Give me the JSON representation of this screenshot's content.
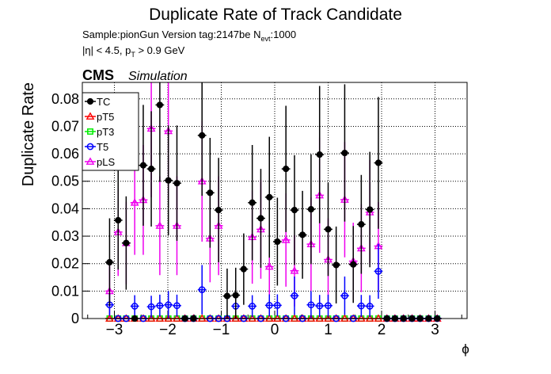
{
  "chart_data": {
    "type": "scatter",
    "title": "Duplicate Rate of Track Candidate",
    "info_line1_prefix": "Sample:pionGun   Version tag:2147be  N",
    "info_line1_sub": "evt",
    "info_line1_suffix": ":1000",
    "info_line2_prefix": "|η| < 4.5, p",
    "info_line2_sub": "T",
    "info_line2_suffix": " > 0.9 GeV",
    "cms_label": "CMS",
    "simulation_label": "Simulation",
    "xlabel": "ϕ",
    "ylabel": "Duplicate Rate",
    "xlim": [
      -3.6,
      3.6
    ],
    "ylim": [
      0,
      0.086
    ],
    "xticks": [
      -3,
      -2,
      -1,
      0,
      1,
      2,
      3
    ],
    "xtick_labels": [
      "−3",
      "−2",
      "−1",
      "0",
      "1",
      "2",
      "3"
    ],
    "yticks": [
      0,
      0.01,
      0.02,
      0.03,
      0.04,
      0.05,
      0.06,
      0.07,
      0.08
    ],
    "ytick_labels": [
      "0",
      "0.01",
      "0.02",
      "0.03",
      "0.04",
      "0.05",
      "0.06",
      "0.07",
      "0.08"
    ],
    "grid": true,
    "legend_position": "top-left",
    "x": [
      -3.09,
      -2.93,
      -2.78,
      -2.62,
      -2.46,
      -2.31,
      -2.15,
      -1.99,
      -1.83,
      -1.68,
      -1.52,
      -1.36,
      -1.21,
      -1.05,
      -0.89,
      -0.73,
      -0.58,
      -0.42,
      -0.26,
      -0.1,
      0.05,
      0.21,
      0.37,
      0.52,
      0.68,
      0.84,
      1.0,
      1.15,
      1.31,
      1.47,
      1.62,
      1.78,
      1.94,
      2.1,
      2.25,
      2.41,
      2.57,
      2.72,
      2.88,
      3.04
    ],
    "series": [
      {
        "name": "TC",
        "marker": "circle-filled",
        "color": "#000000",
        "values": [
          0.0205,
          0.0358,
          0.0275,
          0.0,
          0.0558,
          0.0545,
          0.0778,
          0.0503,
          0.0493,
          0.0,
          0.0,
          0.0667,
          0.0458,
          0.0395,
          0.0082,
          0.0085,
          0.018,
          0.0422,
          0.0365,
          0.0442,
          0.028,
          0.0545,
          0.0395,
          0.0305,
          0.0398,
          0.0597,
          0.0325,
          0.0195,
          0.0603,
          0.0197,
          0.0343,
          0.0397,
          0.0567,
          0.0,
          0.0,
          0.0,
          0.0,
          0.0,
          0.0,
          0.0
        ],
        "errors": [
          0.016,
          0.018,
          0.017,
          0.0,
          0.022,
          0.021,
          0.028,
          0.02,
          0.021,
          0.0,
          0.0,
          0.022,
          0.02,
          0.019,
          0.01,
          0.01,
          0.013,
          0.021,
          0.018,
          0.022,
          0.016,
          0.023,
          0.02,
          0.016,
          0.02,
          0.025,
          0.017,
          0.014,
          0.025,
          0.014,
          0.018,
          0.021,
          0.024,
          0.0,
          0.0,
          0.0,
          0.0,
          0.0,
          0.0,
          0.0
        ]
      },
      {
        "name": "pT5",
        "marker": "triangle-open",
        "color": "#ff0000",
        "values": [
          0.0,
          0.0,
          0.0,
          0.0,
          0.0,
          0.0,
          0.0,
          0.0,
          0.0,
          0.0,
          0.0,
          0.0,
          0.0,
          0.0,
          0.0,
          0.0,
          0.0,
          0.0,
          0.0,
          0.0,
          0.0,
          0.0,
          0.0,
          0.0,
          0.0,
          0.0,
          0.0,
          0.0,
          0.0,
          0.0,
          0.0,
          0.0,
          0.0,
          0.0,
          0.0,
          0.0,
          0.0,
          0.0,
          0.0,
          0.0
        ],
        "errors": [
          0.0,
          0.0,
          0.0,
          0.0,
          0.0,
          0.0,
          0.0,
          0.0,
          0.0,
          0.0,
          0.0,
          0.0,
          0.0,
          0.0,
          0.0,
          0.0,
          0.0,
          0.0,
          0.0,
          0.0,
          0.0,
          0.0,
          0.0,
          0.0,
          0.0,
          0.0,
          0.0,
          0.0,
          0.0,
          0.0,
          0.0,
          0.0,
          0.0,
          0.0,
          0.0,
          0.0,
          0.0,
          0.0,
          0.0,
          0.0
        ]
      },
      {
        "name": "pT3",
        "marker": "square-open",
        "color": "#00ee00",
        "values": [
          0.0,
          0.0,
          0.0,
          0.0,
          0.0,
          0.0,
          0.0,
          0.0,
          0.0,
          0.0,
          0.0,
          0.0,
          0.0,
          0.0,
          0.0,
          0.0,
          0.0,
          0.0,
          0.0,
          0.0,
          0.0,
          0.0,
          0.0,
          0.0,
          0.0,
          0.0,
          0.0,
          0.0,
          0.0,
          0.0,
          0.0,
          0.0,
          0.0,
          0.0,
          0.0,
          0.0,
          0.0,
          0.0,
          0.0,
          0.0
        ],
        "errors": [
          0.0,
          0.0,
          0.0,
          0.0,
          0.0,
          0.0,
          0.0,
          0.0,
          0.0,
          0.0,
          0.0,
          0.0,
          0.0,
          0.0,
          0.0,
          0.0,
          0.0,
          0.0,
          0.0,
          0.0,
          0.0,
          0.0,
          0.0,
          0.0,
          0.0,
          0.0,
          0.0,
          0.0,
          0.0,
          0.0,
          0.0,
          0.0,
          0.0,
          0.0,
          0.0,
          0.0,
          0.0,
          0.0,
          0.0,
          0.0
        ]
      },
      {
        "name": "T5",
        "marker": "circle-open",
        "color": "#0000ff",
        "values": [
          0.005,
          0.0,
          0.0,
          0.0045,
          0.0,
          0.0043,
          0.0047,
          0.005,
          0.0047,
          0.0,
          0.0,
          0.0105,
          0.0,
          0.0,
          0.0,
          0.0045,
          0.0,
          0.0045,
          0.0,
          0.0048,
          0.0048,
          0.0,
          0.0083,
          0.0,
          0.005,
          0.0046,
          0.0047,
          0.0,
          0.0083,
          0.0,
          0.0046,
          0.0045,
          0.0172,
          0.0,
          0.0,
          0.0,
          0.0,
          0.0,
          0.0,
          0.0
        ],
        "errors": [
          0.004,
          0.0,
          0.0,
          0.004,
          0.0,
          0.004,
          0.004,
          0.005,
          0.004,
          0.0,
          0.0,
          0.009,
          0.0,
          0.0,
          0.0,
          0.004,
          0.0,
          0.004,
          0.0,
          0.004,
          0.004,
          0.0,
          0.007,
          0.0,
          0.005,
          0.004,
          0.004,
          0.0,
          0.007,
          0.0,
          0.004,
          0.004,
          0.01,
          0.0,
          0.0,
          0.0,
          0.0,
          0.0,
          0.0,
          0.0
        ]
      },
      {
        "name": "pLS",
        "marker": "triangle-open",
        "color": "#ee00ee",
        "values": [
          0.01,
          0.0315,
          0.0275,
          0.0422,
          0.0432,
          0.0692,
          0.0338,
          0.0683,
          0.0338,
          0.0,
          0.0,
          0.05,
          0.0292,
          0.0338,
          0.0,
          0.0,
          0.0,
          0.0297,
          0.0325,
          0.0189,
          0.0,
          0.0286,
          0.0174,
          0.0,
          0.0271,
          0.0449,
          0.0215,
          0.0,
          0.0433,
          0.0209,
          0.0256,
          0.0387,
          0.0264,
          0.0,
          0.0,
          0.0,
          0.0,
          0.0,
          0.0,
          0.0
        ],
        "errors": [
          0.01,
          0.016,
          0.015,
          0.019,
          0.02,
          0.025,
          0.018,
          0.025,
          0.018,
          0.0,
          0.0,
          0.022,
          0.016,
          0.018,
          0.0,
          0.0,
          0.0,
          0.017,
          0.018,
          0.014,
          0.0,
          0.017,
          0.013,
          0.0,
          0.017,
          0.021,
          0.015,
          0.0,
          0.021,
          0.014,
          0.016,
          0.019,
          0.016,
          0.0,
          0.0,
          0.0,
          0.0,
          0.0,
          0.0,
          0.0
        ]
      }
    ]
  }
}
